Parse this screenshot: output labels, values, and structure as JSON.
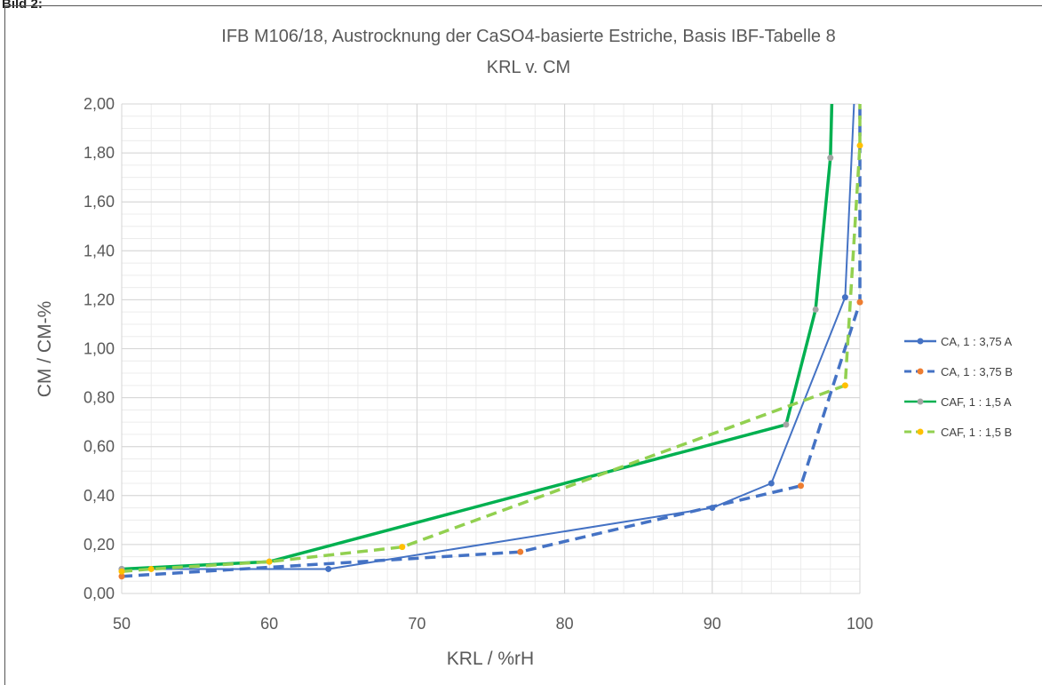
{
  "page_label": "Bild 2:",
  "chart_data": {
    "type": "line",
    "title": "IFB M106/18, Austrocknung der CaSO4-basierte Estriche, Basis IBF-Tabelle 8",
    "subtitle": "KRL v. CM",
    "xlabel": "KRL / %rH",
    "ylabel": "CM / CM-%",
    "xlim": [
      50,
      100
    ],
    "ylim": [
      0,
      2.0
    ],
    "xticks": [
      "50",
      "60",
      "70",
      "80",
      "90",
      "100"
    ],
    "yticks": [
      "0,00",
      "0,20",
      "0,40",
      "0,60",
      "0,80",
      "1,00",
      "1,20",
      "1,40",
      "1,60",
      "1,80",
      "2,00"
    ],
    "grid": true,
    "minor_grid": true,
    "legend_position": "right",
    "series": [
      {
        "name": "CA, 1 : 3,75 A",
        "color": "#4472C4",
        "marker_color": "#4472C4",
        "dashed": false,
        "points": [
          [
            50,
            0.1
          ],
          [
            64,
            0.1
          ],
          [
            90,
            0.35
          ],
          [
            94,
            0.45
          ],
          [
            99,
            1.21
          ],
          [
            99.6,
            2.0
          ]
        ]
      },
      {
        "name": "CA, 1 : 3,75 B",
        "color": "#4472C4",
        "marker_color": "#ED7D31",
        "dashed": true,
        "points": [
          [
            50,
            0.07
          ],
          [
            77,
            0.17
          ],
          [
            96,
            0.44
          ],
          [
            100,
            1.19
          ],
          [
            100,
            2.0
          ]
        ]
      },
      {
        "name": "CAF, 1 : 1,5 A",
        "color": "#00B050",
        "marker_color": "#A5A5A5",
        "dashed": false,
        "points": [
          [
            50,
            0.1
          ],
          [
            60,
            0.13
          ],
          [
            95,
            0.69
          ],
          [
            97,
            1.16
          ],
          [
            98,
            1.78
          ],
          [
            98.1,
            2.0
          ]
        ]
      },
      {
        "name": "CAF, 1 : 1,5 B",
        "color": "#92D050",
        "marker_color": "#FFC000",
        "dashed": true,
        "points": [
          [
            50,
            0.09
          ],
          [
            52,
            0.1
          ],
          [
            60,
            0.13
          ],
          [
            69,
            0.19
          ],
          [
            99,
            0.85
          ],
          [
            100,
            1.83
          ],
          [
            100,
            2.0
          ]
        ]
      }
    ]
  }
}
